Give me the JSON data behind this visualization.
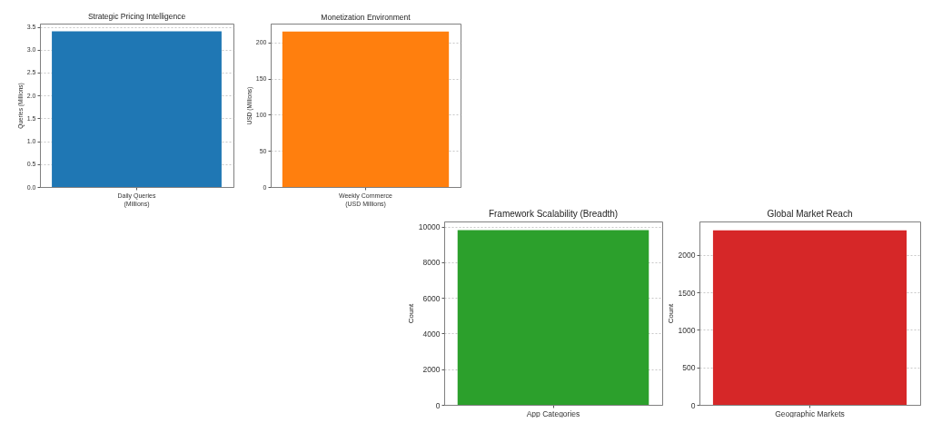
{
  "chart_data": [
    {
      "type": "bar",
      "title": "Strategic Pricing Intelligence",
      "ylabel": "Queries (Millions)",
      "categories": [
        "Daily Queries\n(Millions)"
      ],
      "values": [
        3.4
      ],
      "color": "#1f77b4",
      "ylim": [
        0,
        3.57
      ],
      "yticks": [
        {
          "value": 0,
          "label": "0.0"
        },
        0.5,
        {
          "value": 1,
          "label": "1.0"
        },
        1.5,
        {
          "value": 2,
          "label": "2.0"
        },
        2.5,
        {
          "value": 3,
          "label": "3.0"
        },
        3.5
      ],
      "grid": "y"
    },
    {
      "type": "bar",
      "title": "Monetization Environment",
      "ylabel": "USD (Millions)",
      "categories": [
        "Weekly Commerce\n(USD Millions)"
      ],
      "values": [
        215
      ],
      "color": "#ff7f0e",
      "ylim": [
        0,
        226
      ],
      "yticks": [
        0,
        50,
        100,
        150,
        200
      ],
      "grid": "y"
    },
    {
      "type": "bar",
      "title": "Framework Scalability (Breadth)",
      "ylabel": "Count",
      "categories": [
        "App Categories"
      ],
      "values": [
        9800
      ],
      "color": "#2ca02c",
      "ylim": [
        0,
        10290
      ],
      "yticks": [
        0,
        2000,
        4000,
        6000,
        8000,
        10000
      ],
      "grid": "y"
    },
    {
      "type": "bar",
      "title": "Global Market Reach",
      "ylabel": "Count",
      "categories": [
        "Geographic Markets"
      ],
      "values": [
        2330
      ],
      "color": "#d62728",
      "ylim": [
        0,
        2447
      ],
      "yticks": [
        0,
        500,
        1000,
        1500,
        2000
      ],
      "grid": "y"
    }
  ]
}
